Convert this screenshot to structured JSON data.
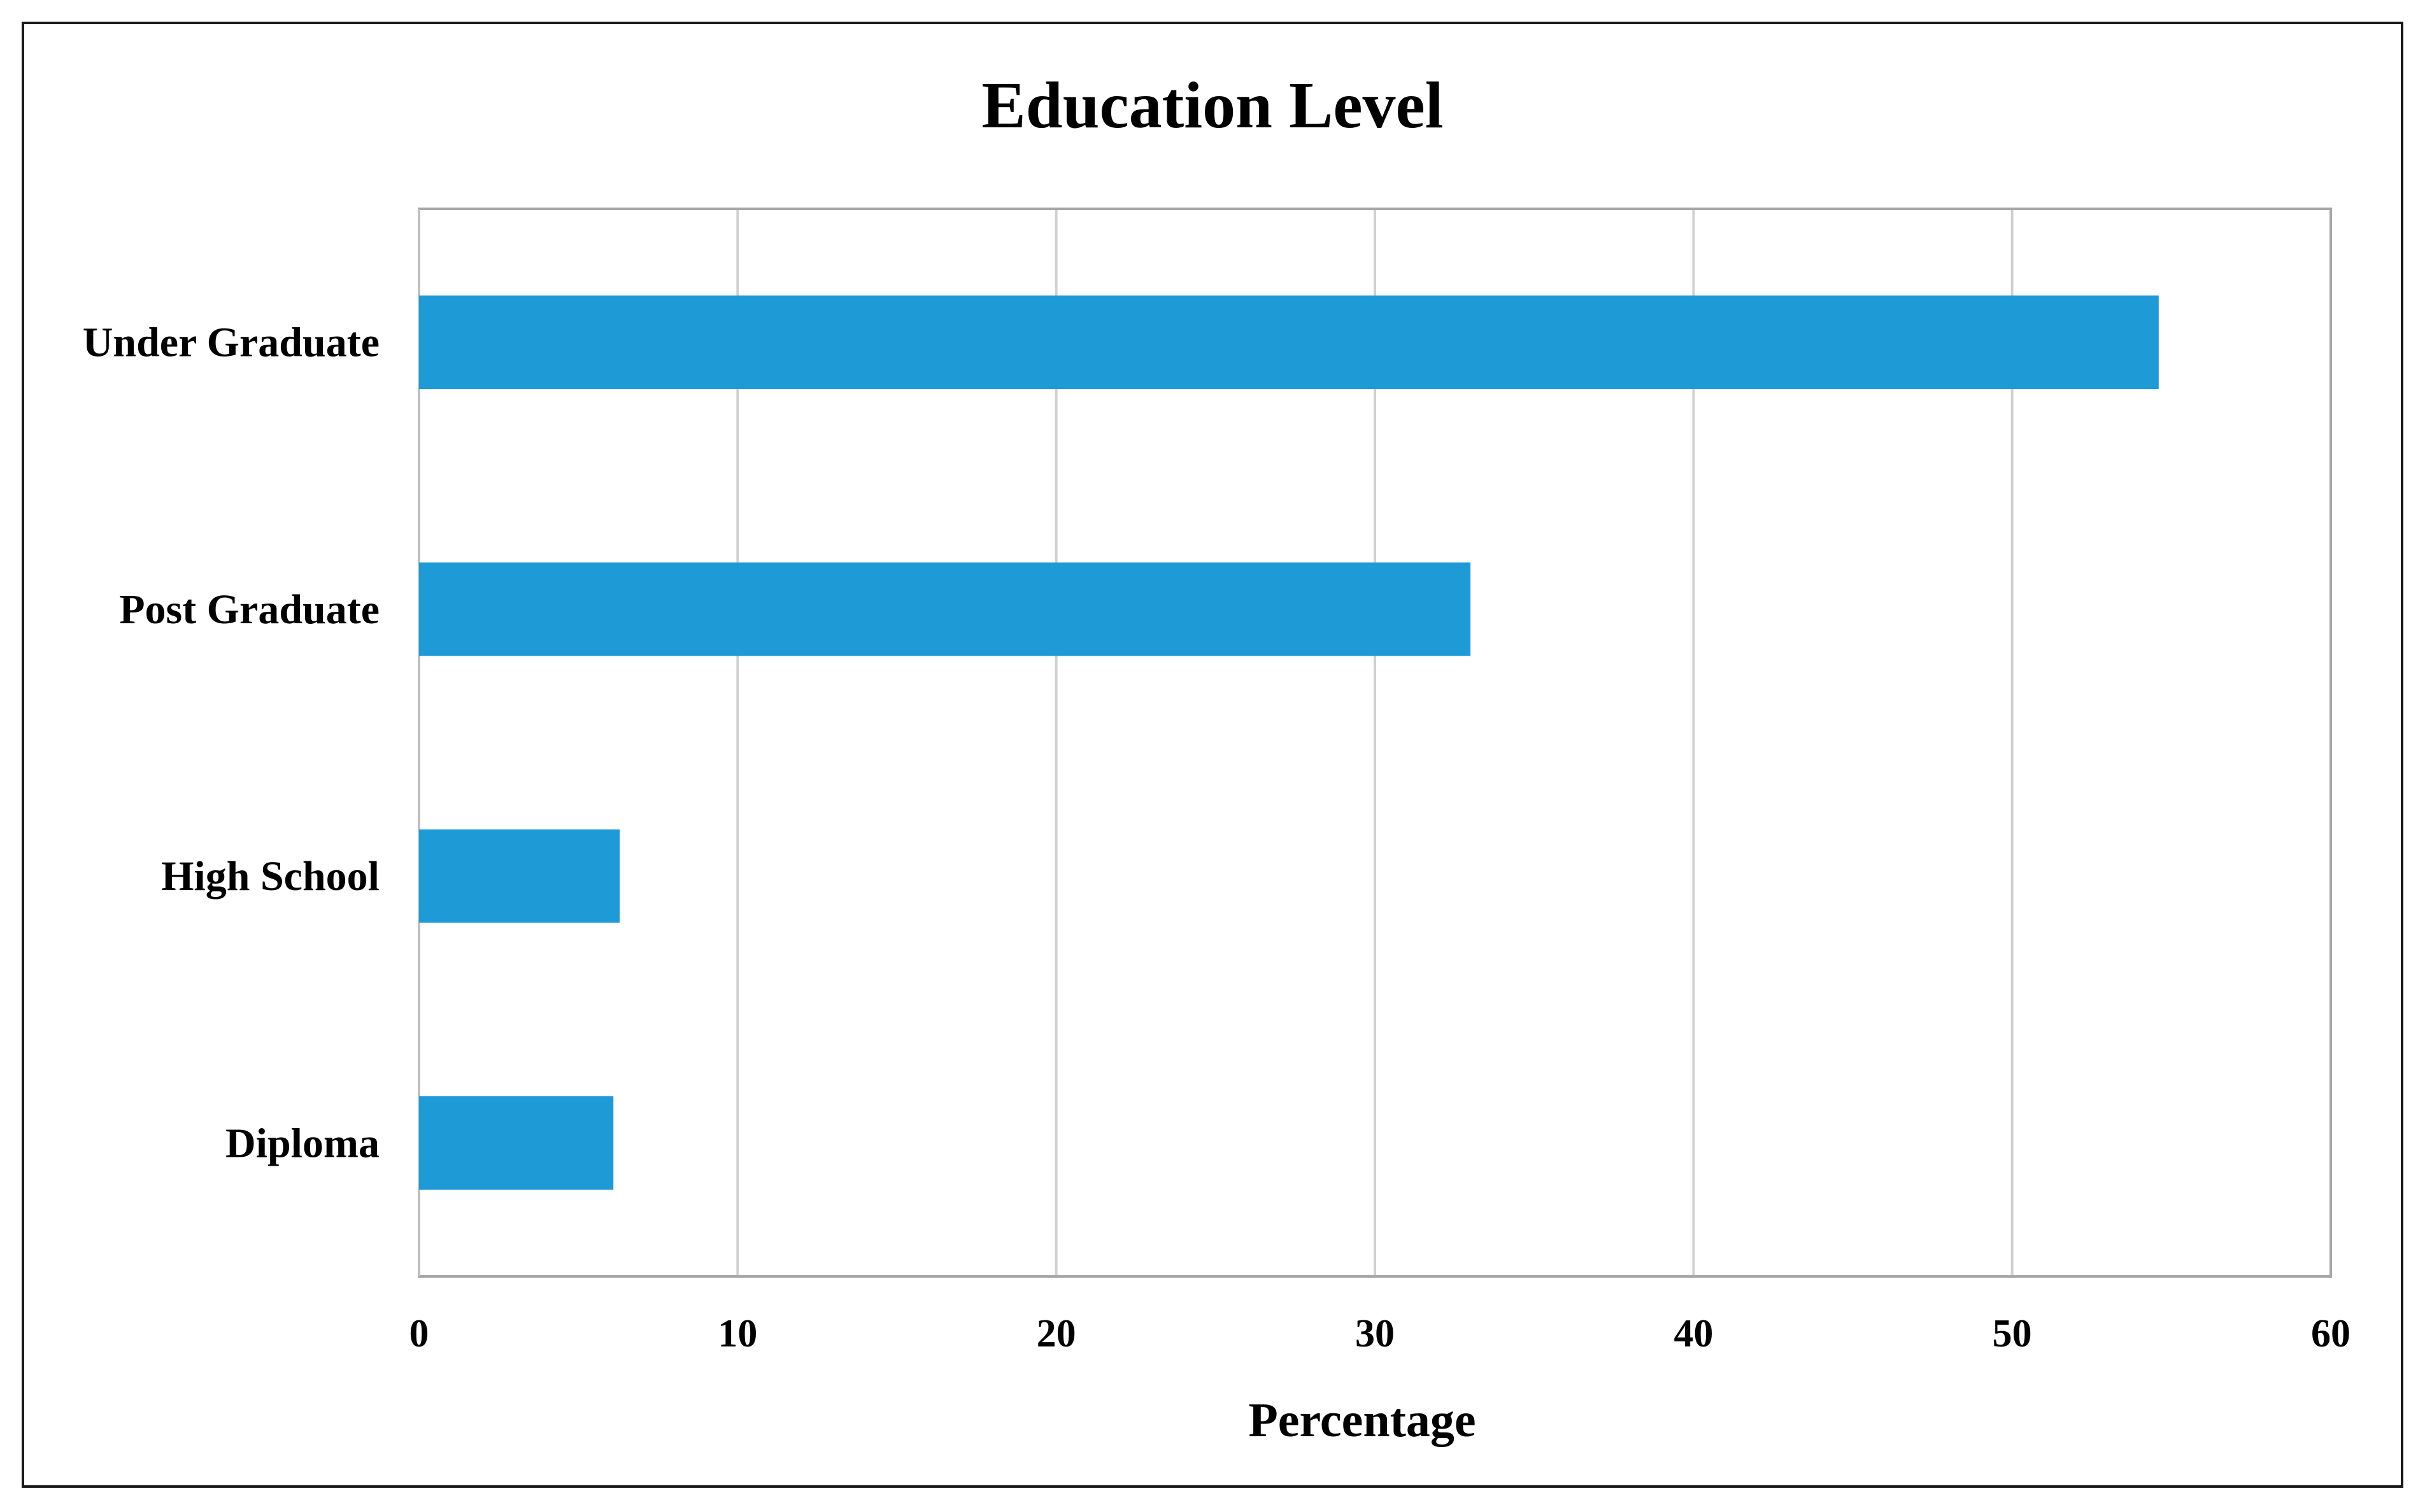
{
  "chart_data": {
    "type": "bar",
    "orientation": "horizontal",
    "title": "Education Level",
    "xlabel": "Percentage",
    "ylabel": "",
    "categories": [
      "Under Graduate",
      "Post Graduate",
      "High School",
      "Diploma"
    ],
    "values": [
      54.6,
      33.0,
      6.3,
      6.1
    ],
    "xlim": [
      0,
      60
    ],
    "xticks": [
      "0",
      "10",
      "20",
      "30",
      "40",
      "50",
      "60"
    ],
    "grid": true,
    "legend": "none",
    "bar_color": "#1E9BD7"
  }
}
